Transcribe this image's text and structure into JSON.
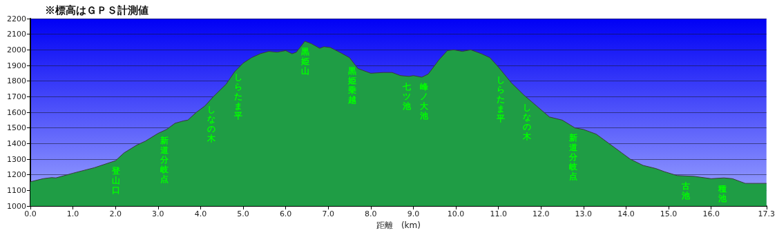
{
  "chart_data": {
    "type": "area",
    "title": "※標高はＧＰＳ計測値",
    "xlabel": "距離　(km)",
    "x": [
      0,
      0.3,
      0.5,
      0.6,
      1.0,
      1.5,
      2.0,
      2.2,
      2.5,
      2.7,
      3.0,
      3.2,
      3.4,
      3.6,
      3.7,
      3.9,
      4.1,
      4.3,
      4.6,
      4.8,
      5.0,
      5.2,
      5.4,
      5.6,
      5.8,
      6.0,
      6.15,
      6.25,
      6.45,
      6.6,
      6.8,
      6.9,
      7.05,
      7.3,
      7.5,
      7.7,
      7.9,
      8.0,
      8.3,
      8.5,
      8.7,
      8.9,
      9.0,
      9.2,
      9.35,
      9.6,
      9.8,
      9.95,
      10.15,
      10.35,
      10.6,
      10.8,
      11.0,
      11.3,
      11.6,
      11.9,
      12.2,
      12.5,
      12.8,
      13.0,
      13.3,
      13.6,
      13.9,
      14.1,
      14.4,
      14.7,
      14.9,
      15.2,
      15.6,
      16.0,
      16.3,
      16.5,
      16.8,
      17.3
    ],
    "values": [
      1155,
      1175,
      1182,
      1180,
      1210,
      1245,
      1290,
      1340,
      1390,
      1415,
      1465,
      1490,
      1530,
      1545,
      1550,
      1600,
      1640,
      1700,
      1780,
      1860,
      1915,
      1950,
      1975,
      1990,
      1985,
      1995,
      1975,
      1985,
      2055,
      2040,
      2010,
      2020,
      2015,
      1980,
      1950,
      1880,
      1860,
      1850,
      1855,
      1855,
      1835,
      1830,
      1835,
      1825,
      1845,
      1935,
      1995,
      2000,
      1990,
      2000,
      1975,
      1950,
      1890,
      1790,
      1710,
      1640,
      1570,
      1550,
      1500,
      1490,
      1460,
      1400,
      1340,
      1300,
      1260,
      1240,
      1220,
      1195,
      1190,
      1175,
      1180,
      1175,
      1145,
      1145
    ],
    "color": "#1f9d45",
    "xlim": [
      0,
      17.3
    ],
    "xticks": [
      {
        "value": 0,
        "label": "0.0"
      },
      {
        "value": 1,
        "label": "1.0"
      },
      {
        "value": 2,
        "label": "2.0"
      },
      {
        "value": 3,
        "label": "3.0"
      },
      {
        "value": 4,
        "label": "4.0"
      },
      {
        "value": 5,
        "label": "5.0"
      },
      {
        "value": 6,
        "label": "6.0"
      },
      {
        "value": 7,
        "label": "7.0"
      },
      {
        "value": 8,
        "label": "8.0"
      },
      {
        "value": 9,
        "label": "9.0"
      },
      {
        "value": 10,
        "label": "10.0"
      },
      {
        "value": 11,
        "label": "11.0"
      },
      {
        "value": 12,
        "label": "12.0"
      },
      {
        "value": 13,
        "label": "13.0"
      },
      {
        "value": 14,
        "label": "14.0"
      },
      {
        "value": 15,
        "label": "15.0"
      },
      {
        "value": 16,
        "label": "16.0"
      },
      {
        "value": 17.3,
        "label": "17.3"
      }
    ],
    "ylim": [
      1000,
      2200
    ],
    "yticks": [
      1000,
      1100,
      1200,
      1300,
      1400,
      1500,
      1600,
      1700,
      1800,
      1900,
      2000,
      2100,
      2200
    ],
    "grid": "y",
    "annotations": [
      {
        "text": "登山口",
        "x": 2.02,
        "y": 1292
      },
      {
        "text": "新道分岐点",
        "x": 3.15,
        "y": 1485
      },
      {
        "text": "しなの木",
        "x": 4.25,
        "y": 1685
      },
      {
        "text": "しらたま平",
        "x": 4.89,
        "y": 1890
      },
      {
        "text": "黒姫山",
        "x": 6.46,
        "y": 2055
      },
      {
        "text": "黒姫乗越",
        "x": 7.56,
        "y": 1930
      },
      {
        "text": "七ツ池",
        "x": 8.85,
        "y": 1830
      },
      {
        "text": "峰ノ大池",
        "x": 9.25,
        "y": 1828
      },
      {
        "text": "しらたま平",
        "x": 11.05,
        "y": 1875
      },
      {
        "text": "しなの木",
        "x": 11.67,
        "y": 1695
      },
      {
        "text": "新道分岐点",
        "x": 12.76,
        "y": 1505
      },
      {
        "text": "古池",
        "x": 15.4,
        "y": 1193
      },
      {
        "text": "種池",
        "x": 16.26,
        "y": 1178
      }
    ]
  }
}
